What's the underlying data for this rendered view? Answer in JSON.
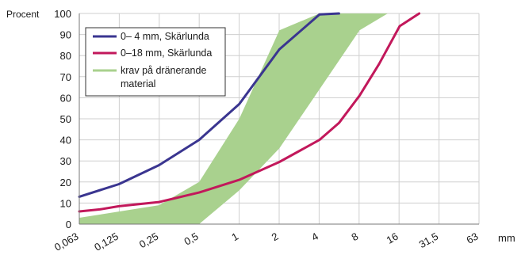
{
  "chart_data": {
    "type": "line",
    "ylabel": "Procent",
    "xunit": "mm",
    "x_ticks": [
      "0,063",
      "0,125",
      "0,25",
      "0,5",
      "1",
      "2",
      "4",
      "8",
      "16",
      "31,5",
      "63"
    ],
    "y_ticks": [
      0,
      10,
      20,
      30,
      40,
      50,
      60,
      70,
      80,
      90,
      100
    ],
    "ylim": [
      0,
      100
    ],
    "xscale": "log2",
    "grid": true,
    "legend_position": "top-left",
    "series": [
      {
        "name": "0– 4 mm, Skärlunda",
        "color": "#3a3590",
        "points": [
          [
            0.063,
            13
          ],
          [
            0.125,
            19
          ],
          [
            0.25,
            28
          ],
          [
            0.5,
            40
          ],
          [
            1,
            57
          ],
          [
            2,
            83
          ],
          [
            4,
            99.5
          ],
          [
            5.6,
            100
          ]
        ]
      },
      {
        "name": "0–18 mm, Skärlunda",
        "color": "#c2185b",
        "points": [
          [
            0.063,
            6
          ],
          [
            0.09,
            7
          ],
          [
            0.125,
            8.5
          ],
          [
            0.25,
            10.5
          ],
          [
            0.5,
            15
          ],
          [
            1,
            21
          ],
          [
            2,
            29.5
          ],
          [
            4,
            40
          ],
          [
            5.6,
            48
          ],
          [
            8,
            61
          ],
          [
            11.2,
            76
          ],
          [
            16,
            94
          ],
          [
            22.4,
            100
          ]
        ]
      }
    ],
    "band": {
      "name": "krav på dränerande material",
      "color": "#a9d18e",
      "upper": [
        [
          0.063,
          3
        ],
        [
          0.25,
          9
        ],
        [
          0.5,
          20
        ],
        [
          1,
          50
        ],
        [
          2,
          92
        ],
        [
          4,
          100
        ],
        [
          13,
          100
        ]
      ],
      "lower": [
        [
          13,
          100
        ],
        [
          8,
          92
        ],
        [
          4,
          64
        ],
        [
          2,
          36
        ],
        [
          1,
          16
        ],
        [
          0.5,
          0
        ],
        [
          0.063,
          0
        ]
      ]
    }
  }
}
